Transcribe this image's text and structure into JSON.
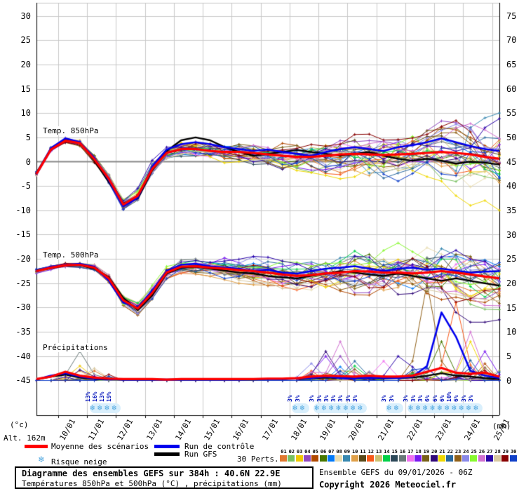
{
  "plot": {
    "label_temp850": "Temp. 850hPa",
    "label_temp500": "Temp. 500hPa",
    "label_precip": "Précipitations",
    "unit_left": "(°c)",
    "unit_right": "(mm)",
    "altitude": "Alt. 162m"
  },
  "legend": {
    "mean_label": "Moyenne des scénarios",
    "control_label": "Run de contrôle",
    "gfs_label": "Run GFS",
    "perts_label": "30 Perts.",
    "snow_label": "Risque neige",
    "mean_color": "#ff0000",
    "control_color": "#0000ee",
    "gfs_color": "#000000"
  },
  "members": {
    "numbers": [
      "01",
      "02",
      "03",
      "04",
      "05",
      "06",
      "07",
      "08",
      "09",
      "10",
      "11",
      "12",
      "13",
      "14",
      "15",
      "16",
      "17",
      "18",
      "19",
      "20",
      "21",
      "22",
      "23",
      "24",
      "25",
      "26",
      "27",
      "28",
      "29",
      "30"
    ],
    "colors": [
      "#e07830",
      "#78c060",
      "#f0c800",
      "#9048c0",
      "#b04800",
      "#487800",
      "#0078f8",
      "#e8dcb0",
      "#3888b0",
      "#e0a048",
      "#584818",
      "#f85818",
      "#ccc070",
      "#00d048",
      "#2c4858",
      "#687878",
      "#f070f0",
      "#7818f0",
      "#786018",
      "#300878",
      "#f0d800",
      "#2868a0",
      "#906018",
      "#8888e8",
      "#88f830",
      "#d070d0",
      "#2800a8",
      "#d8c8a0",
      "#880000",
      "#1040c8"
    ]
  },
  "snow_risk": {
    "groups": [
      {
        "start_hour": 48,
        "percents": [
          "13%",
          "16%",
          "13%",
          "19%"
        ]
      },
      {
        "start_hour": 216,
        "percents": [
          "3%",
          "3%"
        ]
      },
      {
        "start_hour": 234,
        "percents": [
          "3%",
          "3%",
          "3%",
          "3%",
          "3%",
          "3%",
          "3%"
        ]
      },
      {
        "start_hour": 294,
        "percents": [
          "3%",
          "3%"
        ]
      },
      {
        "start_hour": 312,
        "percents": [
          "3%",
          "3%",
          "3%",
          "6%",
          "6%",
          "6%",
          "10%",
          "6%",
          "3%",
          "3%"
        ]
      }
    ]
  },
  "footer": {
    "title": "Diagramme des ensembles GEFS sur 384h : 40.6N 22.9E",
    "subtitle": "Températures 850hPa et 500hPa (°C) , précipitations (mm)",
    "run_info": "Ensemble GEFS du 09/01/2026 - 06Z",
    "copyright": "Copyright 2026 Meteociel.fr"
  },
  "chart_data": {
    "type": "line",
    "title": "Diagramme des ensembles GEFS sur 384h : 40.6N 22.9E",
    "x_axis": {
      "run_start": "09/01 06Z",
      "hours_total": 384,
      "sample_step_hours": 12,
      "dates": [
        "10/01",
        "11/01",
        "12/01",
        "13/01",
        "14/01",
        "15/01",
        "16/01",
        "17/01",
        "18/01",
        "19/01",
        "20/01",
        "21/01",
        "22/01",
        "23/01",
        "24/01",
        "25/01"
      ]
    },
    "left_axis": {
      "label": "(°c)",
      "ticks": [
        30,
        25,
        20,
        15,
        10,
        5,
        0,
        -5,
        -10,
        -15,
        -20,
        -25,
        -30,
        -35,
        -40,
        -45
      ]
    },
    "right_axis": {
      "label": "(mm)",
      "ticks": [
        75,
        70,
        65,
        60,
        55,
        50,
        45,
        40,
        35,
        30,
        25,
        20,
        15,
        10,
        5,
        0
      ]
    },
    "grid": {
      "color": "#c8c8c8",
      "zero_line_color": "#8a8a8a",
      "frame_color": "#000000"
    },
    "series": {
      "mean_850": [
        -2.5,
        2.5,
        4.3,
        3.8,
        0.5,
        -3.5,
        -8.8,
        -7.0,
        -1.5,
        1.8,
        2.6,
        2.6,
        2.2,
        2.0,
        2.0,
        1.8,
        1.5,
        1.2,
        1.0,
        1.0,
        1.2,
        1.5,
        1.6,
        1.5,
        1.4,
        1.5,
        1.6,
        1.8,
        2.0,
        1.8,
        1.5,
        1.0,
        0.6
      ],
      "control_850": [
        -2.6,
        2.8,
        4.8,
        4.0,
        0.8,
        -3.8,
        -9.2,
        -7.4,
        -1.0,
        2.5,
        3.6,
        4.0,
        3.6,
        3.0,
        2.6,
        2.2,
        2.5,
        2.0,
        1.6,
        1.2,
        2.0,
        2.6,
        3.0,
        2.6,
        2.2,
        3.0,
        3.4,
        4.0,
        4.8,
        4.0,
        3.2,
        2.6,
        2.2
      ],
      "gfs_850": [
        -2.4,
        2.6,
        4.5,
        3.9,
        0.2,
        -4.2,
        -8.6,
        -7.6,
        -1.8,
        2.2,
        4.4,
        5.0,
        4.4,
        3.0,
        2.0,
        1.2,
        1.6,
        2.0,
        2.4,
        2.0,
        1.6,
        1.2,
        1.6,
        2.0,
        1.2,
        0.6,
        0.2,
        0.6,
        0.2,
        -0.4,
        0.0,
        -0.2,
        -0.6
      ],
      "mean_500": [
        -22.5,
        -21.8,
        -21.3,
        -21.2,
        -21.8,
        -24.0,
        -28.5,
        -30.2,
        -27.0,
        -22.8,
        -21.6,
        -21.5,
        -21.8,
        -22.0,
        -22.3,
        -22.5,
        -22.8,
        -23.2,
        -23.5,
        -23.3,
        -23.0,
        -22.8,
        -22.5,
        -22.6,
        -22.8,
        -22.8,
        -23.0,
        -22.8,
        -22.5,
        -22.8,
        -23.2,
        -23.6,
        -24.0
      ],
      "control_500": [
        -22.6,
        -21.6,
        -21.2,
        -21.0,
        -21.6,
        -24.5,
        -29.0,
        -30.0,
        -26.5,
        -22.5,
        -21.2,
        -21.0,
        -21.5,
        -21.8,
        -22.0,
        -22.5,
        -22.2,
        -22.8,
        -23.0,
        -22.5,
        -22.0,
        -21.8,
        -21.5,
        -22.0,
        -22.5,
        -22.0,
        -21.8,
        -22.2,
        -22.0,
        -22.4,
        -22.8,
        -22.6,
        -22.5
      ],
      "gfs_500": [
        -22.4,
        -21.9,
        -21.4,
        -21.3,
        -22.0,
        -23.8,
        -28.0,
        -30.5,
        -27.5,
        -23.0,
        -21.8,
        -21.6,
        -22.0,
        -22.4,
        -22.8,
        -23.0,
        -23.5,
        -23.8,
        -24.0,
        -23.5,
        -23.0,
        -22.5,
        -22.8,
        -23.2,
        -23.5,
        -23.0,
        -23.5,
        -24.0,
        -24.5,
        -24.0,
        -24.5,
        -25.0,
        -25.5
      ],
      "mean_precip": [
        0.3,
        0.8,
        1.8,
        1.0,
        0.6,
        0.4,
        0.3,
        0.3,
        0.3,
        0.2,
        0.3,
        0.3,
        0.3,
        0.3,
        0.3,
        0.3,
        0.4,
        0.4,
        0.5,
        0.8,
        1.0,
        0.9,
        0.8,
        1.0,
        0.8,
        0.8,
        1.0,
        1.8,
        2.6,
        1.6,
        1.4,
        1.6,
        0.8
      ],
      "control_precip": [
        0.2,
        1.0,
        1.5,
        0.8,
        0.4,
        0.3,
        0.2,
        0.2,
        0.2,
        0.2,
        0.2,
        0.2,
        0.2,
        0.2,
        0.2,
        0.3,
        0.3,
        0.3,
        0.4,
        0.5,
        0.8,
        0.5,
        0.4,
        0.6,
        0.5,
        0.5,
        0.8,
        3.0,
        14.0,
        9.0,
        2.0,
        1.0,
        0.5
      ],
      "gfs_precip": [
        0.2,
        0.8,
        1.2,
        0.6,
        0.3,
        0.2,
        0.2,
        0.2,
        0.2,
        0.2,
        0.2,
        0.2,
        0.2,
        0.2,
        0.2,
        0.2,
        0.3,
        0.3,
        0.4,
        0.5,
        0.6,
        0.5,
        0.4,
        0.5,
        0.4,
        0.5,
        0.6,
        1.0,
        1.5,
        1.0,
        0.8,
        0.5,
        0.3
      ]
    },
    "ensemble": {
      "count": 30,
      "spread_850": [
        0.5,
        0.6,
        0.7,
        0.8,
        1.0,
        1.3,
        1.6,
        1.7,
        1.9,
        1.8,
        2.0,
        2.2,
        2.4,
        2.6,
        2.8,
        3.0,
        3.3,
        3.6,
        3.9,
        4.2,
        4.4,
        4.6,
        4.8,
        5.0,
        5.2,
        5.4,
        5.6,
        5.8,
        6.0,
        6.2,
        6.4,
        6.5,
        6.6
      ],
      "spread_500": [
        0.5,
        0.6,
        0.6,
        0.7,
        0.9,
        1.3,
        1.7,
        1.9,
        2.1,
        1.9,
        1.8,
        2.0,
        2.2,
        2.5,
        2.8,
        3.1,
        3.4,
        3.7,
        4.0,
        4.3,
        4.5,
        4.7,
        4.9,
        5.1,
        5.3,
        5.5,
        5.7,
        5.9,
        6.0,
        6.2,
        6.4,
        6.5,
        6.6
      ],
      "precip_events": [
        {
          "i0": 2,
          "i1": 5,
          "max": 2.5
        },
        {
          "i0": 19,
          "i1": 23,
          "max": 3
        },
        {
          "i0": 26,
          "i1": 32,
          "max": 4.5
        }
      ],
      "precip_spikes": [
        [
          15,
          3,
          6
        ],
        [
          2,
          3,
          3
        ],
        [
          27,
          4,
          2.5
        ],
        [
          0,
          4,
          2
        ],
        [
          9,
          3,
          2
        ],
        [
          23,
          19,
          3.5
        ],
        [
          19,
          20,
          6
        ],
        [
          17,
          20,
          5
        ],
        [
          25,
          21,
          8
        ],
        [
          3,
          21,
          5
        ],
        [
          21,
          22,
          4
        ],
        [
          16,
          24,
          4
        ],
        [
          26,
          25,
          5
        ],
        [
          13,
          22,
          3
        ],
        [
          22,
          27,
          20
        ],
        [
          5,
          28,
          8
        ],
        [
          11,
          29,
          16
        ],
        [
          25,
          30,
          10
        ],
        [
          20,
          30,
          8
        ],
        [
          17,
          31,
          6
        ]
      ],
      "overrides_500": [
        [
          19,
          28,
          -26
        ],
        [
          19,
          29,
          -31
        ],
        [
          19,
          30,
          -33
        ],
        [
          19,
          31,
          -33
        ],
        [
          19,
          32,
          -32.5
        ]
      ],
      "overrides_850": [
        [
          20,
          28,
          -4
        ],
        [
          20,
          29,
          -7
        ],
        [
          20,
          30,
          -9
        ],
        [
          20,
          31,
          -8
        ],
        [
          20,
          32,
          -10
        ],
        [
          8,
          30,
          7
        ],
        [
          8,
          31,
          9
        ],
        [
          8,
          32,
          10
        ]
      ]
    }
  }
}
